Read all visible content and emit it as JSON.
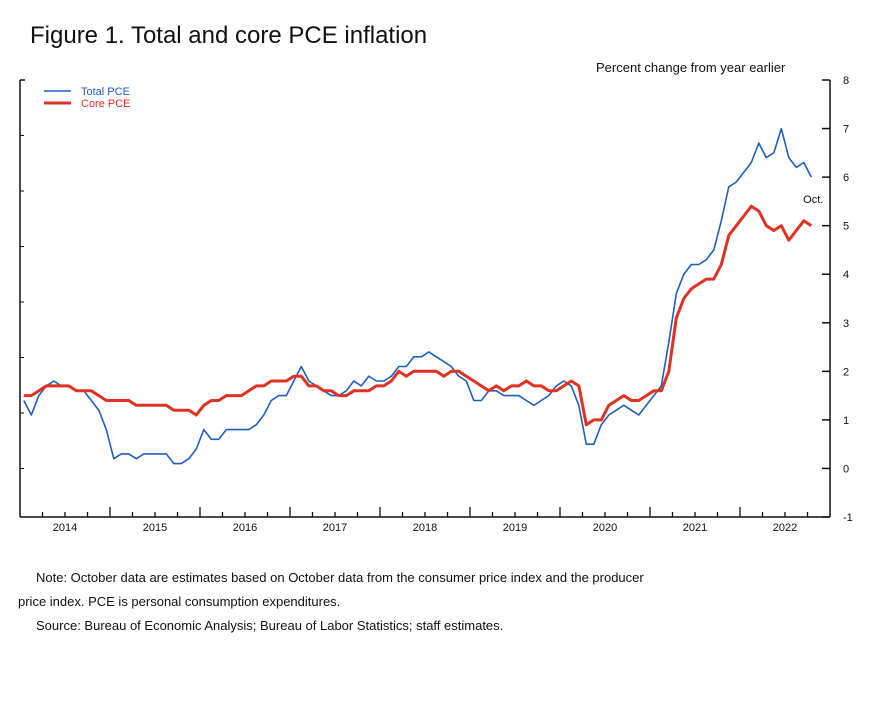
{
  "chart_data": {
    "type": "line",
    "title": "Figure 1. Total and core PCE inflation",
    "ylabel": "Percent change from year earlier",
    "xlabel": "",
    "ylim": [
      -1,
      8
    ],
    "yticks": [
      "-1",
      "0",
      "1",
      "2",
      "3",
      "4",
      "5",
      "6",
      "7",
      "8"
    ],
    "xticks": [
      "2014",
      "2015",
      "2016",
      "2017",
      "2018",
      "2019",
      "2020",
      "2021",
      "2022"
    ],
    "x_start": "Jan 2014",
    "x_end": "Oct 2022",
    "frequency": "monthly",
    "grid": false,
    "legend_position": "top-left",
    "annotation": "Oct.",
    "series": [
      {
        "name": "Total PCE",
        "color": "#1f5fbf",
        "values": [
          1.4,
          1.1,
          1.5,
          1.7,
          1.8,
          1.7,
          1.7,
          1.6,
          1.6,
          1.4,
          1.2,
          0.8,
          0.2,
          0.3,
          0.3,
          0.2,
          0.3,
          0.3,
          0.3,
          0.3,
          0.1,
          0.1,
          0.2,
          0.4,
          0.8,
          0.6,
          0.6,
          0.8,
          0.8,
          0.8,
          0.8,
          0.9,
          1.1,
          1.4,
          1.5,
          1.5,
          1.8,
          2.1,
          1.8,
          1.7,
          1.6,
          1.5,
          1.5,
          1.6,
          1.8,
          1.7,
          1.9,
          1.8,
          1.8,
          1.9,
          2.1,
          2.1,
          2.3,
          2.3,
          2.4,
          2.3,
          2.2,
          2.1,
          1.9,
          1.8,
          1.4,
          1.4,
          1.6,
          1.6,
          1.5,
          1.5,
          1.5,
          1.4,
          1.3,
          1.4,
          1.5,
          1.7,
          1.8,
          1.7,
          1.3,
          0.5,
          0.5,
          0.9,
          1.1,
          1.2,
          1.3,
          1.2,
          1.1,
          1.3,
          1.5,
          1.7,
          2.6,
          3.6,
          4.0,
          4.2,
          4.2,
          4.3,
          4.5,
          5.1,
          5.8,
          5.9,
          6.1,
          6.3,
          6.7,
          6.4,
          6.5,
          7.0,
          6.4,
          6.2,
          6.3,
          6.0
        ]
      },
      {
        "name": "Core PCE",
        "color": "#e03224",
        "values": [
          1.5,
          1.5,
          1.6,
          1.7,
          1.7,
          1.7,
          1.7,
          1.6,
          1.6,
          1.6,
          1.5,
          1.4,
          1.4,
          1.4,
          1.4,
          1.3,
          1.3,
          1.3,
          1.3,
          1.3,
          1.2,
          1.2,
          1.2,
          1.1,
          1.3,
          1.4,
          1.4,
          1.5,
          1.5,
          1.5,
          1.6,
          1.7,
          1.7,
          1.8,
          1.8,
          1.8,
          1.9,
          1.9,
          1.7,
          1.7,
          1.6,
          1.6,
          1.5,
          1.5,
          1.6,
          1.6,
          1.6,
          1.7,
          1.7,
          1.8,
          2.0,
          1.9,
          2.0,
          2.0,
          2.0,
          2.0,
          1.9,
          2.0,
          2.0,
          1.9,
          1.8,
          1.7,
          1.6,
          1.7,
          1.6,
          1.7,
          1.7,
          1.8,
          1.7,
          1.7,
          1.6,
          1.6,
          1.7,
          1.8,
          1.7,
          0.9,
          1.0,
          1.0,
          1.3,
          1.4,
          1.5,
          1.4,
          1.4,
          1.5,
          1.6,
          1.6,
          2.0,
          3.1,
          3.5,
          3.7,
          3.8,
          3.9,
          3.9,
          4.2,
          4.8,
          5.0,
          5.2,
          5.4,
          5.3,
          5.0,
          4.9,
          5.0,
          4.7,
          4.9,
          5.1,
          5.0
        ]
      }
    ]
  },
  "notes": {
    "note_line1": "Note: October data are estimates based on October data from the consumer price index and the producer",
    "note_line2": "price index. PCE is personal consumption expenditures.",
    "source": "Source: Bureau of Economic Analysis; Bureau of Labor Statistics; staff estimates."
  }
}
